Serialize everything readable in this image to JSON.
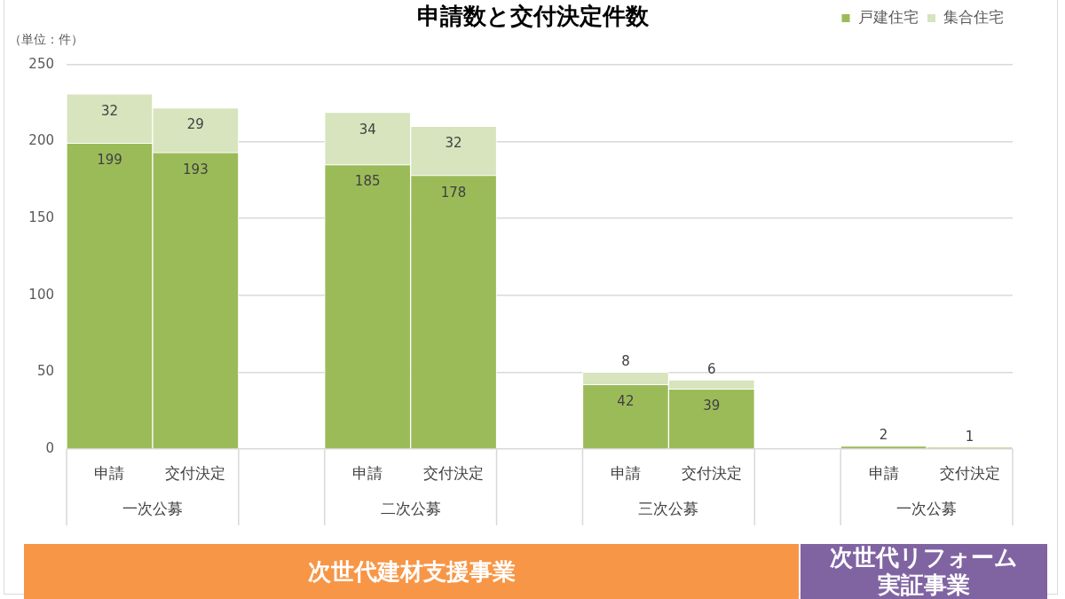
{
  "chart_data": {
    "type": "bar",
    "title": "申請数と交付決定件数",
    "ylabel": "（単位：件）",
    "categories": [
      "申請",
      "交付決定",
      null,
      "申請",
      "交付決定",
      null,
      "申請",
      "交付決定",
      null,
      "申請",
      "交付決定"
    ],
    "series": [
      {
        "name": "戸建住宅",
        "color": "#9bbb59",
        "values": [
          199,
          193,
          null,
          185,
          178,
          null,
          42,
          39,
          null,
          2,
          1
        ]
      },
      {
        "name": "集合住宅",
        "color": "#d7e4bd",
        "values": [
          32,
          29,
          null,
          34,
          32,
          null,
          8,
          6,
          null,
          null,
          null
        ]
      }
    ],
    "stacked": true,
    "ylim": [
      0,
      250
    ],
    "yticks": [
      0,
      50,
      100,
      150,
      200,
      250
    ],
    "grid": "y",
    "legend": "top right",
    "data_labels": true,
    "annotations": [
      "一次公募",
      "二次公募",
      "三次公募",
      "一次公募",
      "次世代建材支援事業",
      "次世代リフォーム実証事業"
    ]
  }
}
